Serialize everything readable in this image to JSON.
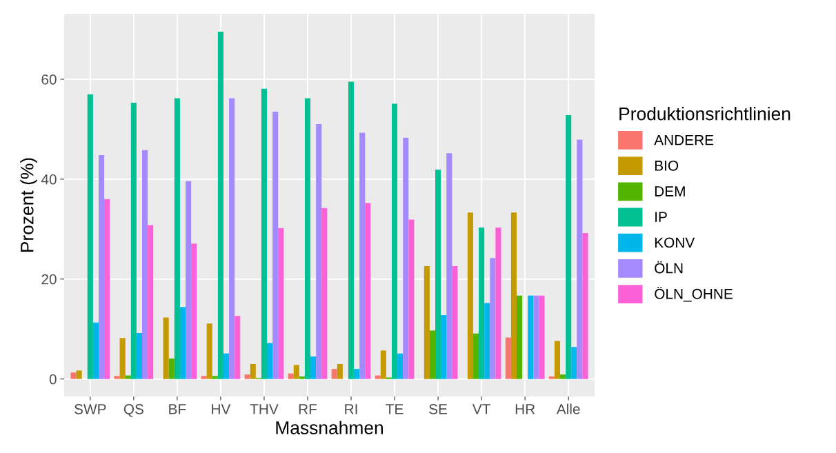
{
  "chart_data": {
    "type": "bar",
    "xlabel": "Massnahmen",
    "ylabel": "Prozent (%)",
    "legend_title": "Produktionsrichtlinien",
    "legend": "right",
    "grid": true,
    "categories": [
      "SWP",
      "QS",
      "BF",
      "HV",
      "THV",
      "RF",
      "RI",
      "TE",
      "SE",
      "VT",
      "HR",
      "Alle"
    ],
    "ylim": [
      -3.5,
      73.1
    ],
    "yticks": [
      0,
      20,
      40,
      60
    ],
    "series": [
      {
        "name": "ANDERE",
        "color": "#f8766d",
        "values": [
          1.3,
          0.6,
          null,
          0.6,
          0.9,
          1.1,
          2.0,
          0.7,
          null,
          null,
          8.3,
          0.5
        ]
      },
      {
        "name": "BIO",
        "color": "#c49a00",
        "values": [
          1.7,
          8.2,
          12.3,
          11.1,
          3.0,
          2.8,
          3.0,
          5.7,
          22.6,
          33.3,
          33.3,
          7.6
        ]
      },
      {
        "name": "DEM",
        "color": "#53b400",
        "values": [
          null,
          0.7,
          4.1,
          0.6,
          0.2,
          0.5,
          null,
          0.3,
          9.7,
          9.1,
          16.7,
          0.9
        ]
      },
      {
        "name": "IP",
        "color": "#00c094",
        "values": [
          57.0,
          55.3,
          56.2,
          69.5,
          58.1,
          56.2,
          59.5,
          55.1,
          41.9,
          30.3,
          null,
          52.8
        ]
      },
      {
        "name": "KONV",
        "color": "#00b6eb",
        "values": [
          11.3,
          9.2,
          14.4,
          5.1,
          7.2,
          4.5,
          2.0,
          5.1,
          12.8,
          15.2,
          16.7,
          6.4
        ]
      },
      {
        "name": "ÖLN",
        "color": "#a58aff",
        "values": [
          44.8,
          45.8,
          39.6,
          56.2,
          53.5,
          51.0,
          49.3,
          48.3,
          45.2,
          24.2,
          16.7,
          47.9
        ]
      },
      {
        "name": "ÖLN_OHNE",
        "color": "#fb61d7",
        "values": [
          36.0,
          30.8,
          27.1,
          12.6,
          30.2,
          34.2,
          35.2,
          31.9,
          22.6,
          30.3,
          16.7,
          29.2
        ]
      }
    ]
  }
}
